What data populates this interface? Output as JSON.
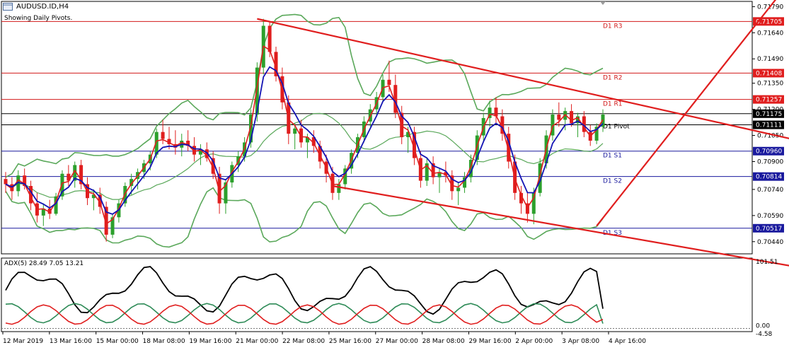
{
  "header": {
    "symbol": "AUDUSD.ID,H4",
    "note": "Showing Daily Pivots.",
    "icons": [
      "window-icon",
      "chart-icon"
    ]
  },
  "adx_header": "ADX(5) 28.49 7.05 13.21",
  "colors": {
    "bull": "#2ca02c",
    "bear": "#e01e1e",
    "bands": "#5aa85a",
    "ma_red": "#e01e1e",
    "ma_blue": "#1414b4",
    "trend": "#e01e1e",
    "resistance": "#d21919",
    "support": "#1a1a9e",
    "label_red_bg": "#e01e1e",
    "label_blue_bg": "#1a1a9e",
    "price_bg": "#000000",
    "adx_main": "#000000",
    "adx_plus": "#2e8b57",
    "adx_minus": "#e01e1e"
  },
  "pivots": [
    {
      "name": "D1 R3",
      "value": 0.71705,
      "label": "0.71705",
      "kind": "resistance"
    },
    {
      "name": "D1 R2",
      "value": 0.71408,
      "label": "0.71408",
      "kind": "resistance"
    },
    {
      "name": "D1 R1",
      "value": 0.71257,
      "label": "0.71257",
      "kind": "resistance"
    },
    {
      "name": "D1 Pivot",
      "value": 0.71111,
      "label": "0.71111",
      "kind": "pivot"
    },
    {
      "name": "D1 S1",
      "value": 0.7096,
      "label": "0.70960",
      "kind": "support"
    },
    {
      "name": "D1 S2",
      "value": 0.70814,
      "label": "0.70814",
      "kind": "support"
    },
    {
      "name": "D1 S3",
      "value": 0.70517,
      "label": "0.70517",
      "kind": "support"
    }
  ],
  "current_price": {
    "value": 0.71175,
    "label": "0.71175"
  },
  "price_ticks": [
    "0.71790",
    "0.71640",
    "0.71490",
    "0.71350",
    "0.71200",
    "0.71050",
    "0.70900",
    "0.70740",
    "0.70590",
    "0.70440"
  ],
  "adx_ticks": [
    "101.51",
    "0.00",
    "-4.58"
  ],
  "time_labels": [
    "12 Mar 2019",
    "13 Mar 16:00",
    "15 Mar 00:00",
    "18 Mar 08:00",
    "19 Mar 16:00",
    "21 Mar 00:00",
    "22 Mar 08:00",
    "25 Mar 16:00",
    "27 Mar 00:00",
    "28 Mar 08:00",
    "29 Mar 16:00",
    "2 Apr 00:00",
    "3 Apr 08:00",
    "4 Apr 16:00"
  ],
  "chart_data": {
    "type": "candlestick",
    "title": "AUDUSD.ID,H4",
    "ylim": [
      0.7037,
      0.7182
    ],
    "candles": [
      [
        0.708,
        0.7084,
        0.7072,
        0.7077
      ],
      [
        0.7077,
        0.7081,
        0.7068,
        0.7073
      ],
      [
        0.7073,
        0.7085,
        0.707,
        0.7082
      ],
      [
        0.7082,
        0.7086,
        0.7074,
        0.7076
      ],
      [
        0.7076,
        0.7079,
        0.7062,
        0.7066
      ],
      [
        0.7066,
        0.7072,
        0.7055,
        0.7059
      ],
      [
        0.7059,
        0.7066,
        0.7053,
        0.7063
      ],
      [
        0.7063,
        0.7068,
        0.7057,
        0.706
      ],
      [
        0.706,
        0.7072,
        0.7059,
        0.707
      ],
      [
        0.707,
        0.7085,
        0.7068,
        0.7083
      ],
      [
        0.7083,
        0.7088,
        0.7076,
        0.7079
      ],
      [
        0.7079,
        0.709,
        0.7075,
        0.7088
      ],
      [
        0.7088,
        0.7091,
        0.7074,
        0.7077
      ],
      [
        0.7077,
        0.7081,
        0.7065,
        0.7069
      ],
      [
        0.7069,
        0.7074,
        0.7062,
        0.7071
      ],
      [
        0.7071,
        0.7075,
        0.706,
        0.7064
      ],
      [
        0.7064,
        0.7067,
        0.7044,
        0.7048
      ],
      [
        0.7048,
        0.706,
        0.7046,
        0.7058
      ],
      [
        0.7058,
        0.7068,
        0.7055,
        0.7066
      ],
      [
        0.7066,
        0.7078,
        0.7064,
        0.7076
      ],
      [
        0.7076,
        0.7083,
        0.7071,
        0.708
      ],
      [
        0.708,
        0.7086,
        0.7074,
        0.7084
      ],
      [
        0.7084,
        0.7091,
        0.708,
        0.7089
      ],
      [
        0.7089,
        0.7096,
        0.7085,
        0.7094
      ],
      [
        0.7094,
        0.7109,
        0.7092,
        0.7107
      ],
      [
        0.7107,
        0.7114,
        0.71,
        0.7103
      ],
      [
        0.7103,
        0.711,
        0.7097,
        0.71
      ],
      [
        0.71,
        0.7108,
        0.7094,
        0.7098
      ],
      [
        0.7098,
        0.7106,
        0.7093,
        0.7102
      ],
      [
        0.7102,
        0.7108,
        0.7096,
        0.7099
      ],
      [
        0.7099,
        0.7104,
        0.709,
        0.7094
      ],
      [
        0.7094,
        0.71,
        0.7088,
        0.7097
      ],
      [
        0.7097,
        0.7101,
        0.709,
        0.7092
      ],
      [
        0.7092,
        0.7096,
        0.708,
        0.7083
      ],
      [
        0.7083,
        0.7087,
        0.706,
        0.7066
      ],
      [
        0.7066,
        0.708,
        0.706,
        0.7078
      ],
      [
        0.7078,
        0.709,
        0.7075,
        0.7088
      ],
      [
        0.7088,
        0.7096,
        0.7084,
        0.7093
      ],
      [
        0.7093,
        0.7104,
        0.709,
        0.7101
      ],
      [
        0.7101,
        0.712,
        0.7098,
        0.7117
      ],
      [
        0.7117,
        0.7147,
        0.7113,
        0.7144
      ],
      [
        0.7144,
        0.7172,
        0.714,
        0.7168
      ],
      [
        0.7168,
        0.717,
        0.715,
        0.7153
      ],
      [
        0.7153,
        0.7156,
        0.7136,
        0.7139
      ],
      [
        0.7139,
        0.7144,
        0.712,
        0.7124
      ],
      [
        0.7124,
        0.7128,
        0.71,
        0.7106
      ],
      [
        0.7106,
        0.7112,
        0.7097,
        0.7109
      ],
      [
        0.7109,
        0.7114,
        0.7098,
        0.7101
      ],
      [
        0.7101,
        0.7106,
        0.7092,
        0.7104
      ],
      [
        0.7104,
        0.7108,
        0.7095,
        0.7099
      ],
      [
        0.7099,
        0.7102,
        0.7086,
        0.709
      ],
      [
        0.709,
        0.7094,
        0.7078,
        0.7083
      ],
      [
        0.7083,
        0.7087,
        0.7068,
        0.7072
      ],
      [
        0.7072,
        0.708,
        0.7068,
        0.7077
      ],
      [
        0.7077,
        0.7088,
        0.7074,
        0.7086
      ],
      [
        0.7086,
        0.7097,
        0.7083,
        0.7095
      ],
      [
        0.7095,
        0.7106,
        0.7092,
        0.7104
      ],
      [
        0.7104,
        0.7116,
        0.7101,
        0.7113
      ],
      [
        0.7113,
        0.7123,
        0.711,
        0.712
      ],
      [
        0.712,
        0.713,
        0.7117,
        0.7127
      ],
      [
        0.7127,
        0.714,
        0.7124,
        0.7137
      ],
      [
        0.7137,
        0.7148,
        0.713,
        0.7134
      ],
      [
        0.7134,
        0.714,
        0.7115,
        0.7118
      ],
      [
        0.7118,
        0.7122,
        0.71,
        0.7104
      ],
      [
        0.7104,
        0.711,
        0.7095,
        0.7107
      ],
      [
        0.7107,
        0.711,
        0.7088,
        0.7092
      ],
      [
        0.7092,
        0.7096,
        0.7075,
        0.7079
      ],
      [
        0.7079,
        0.7092,
        0.7076,
        0.7089
      ],
      [
        0.7089,
        0.7093,
        0.7077,
        0.7081
      ],
      [
        0.7081,
        0.7086,
        0.7072,
        0.7084
      ],
      [
        0.7084,
        0.709,
        0.7078,
        0.7082
      ],
      [
        0.7082,
        0.7085,
        0.7068,
        0.7073
      ],
      [
        0.7073,
        0.7078,
        0.7065,
        0.7075
      ],
      [
        0.7075,
        0.7084,
        0.7072,
        0.7081
      ],
      [
        0.7081,
        0.7094,
        0.7078,
        0.7091
      ],
      [
        0.7091,
        0.7108,
        0.7088,
        0.7105
      ],
      [
        0.7105,
        0.7118,
        0.7102,
        0.7115
      ],
      [
        0.7115,
        0.7125,
        0.711,
        0.7121
      ],
      [
        0.7121,
        0.7127,
        0.7112,
        0.7116
      ],
      [
        0.7116,
        0.712,
        0.7102,
        0.7106
      ],
      [
        0.7106,
        0.711,
        0.7086,
        0.709
      ],
      [
        0.709,
        0.7094,
        0.7068,
        0.7072
      ],
      [
        0.7072,
        0.7076,
        0.706,
        0.7066
      ],
      [
        0.7066,
        0.7072,
        0.7055,
        0.706
      ],
      [
        0.706,
        0.7075,
        0.7054,
        0.7072
      ],
      [
        0.7072,
        0.7092,
        0.707,
        0.7089
      ],
      [
        0.7089,
        0.7108,
        0.7086,
        0.7105
      ],
      [
        0.7105,
        0.712,
        0.7102,
        0.7117
      ],
      [
        0.7117,
        0.7124,
        0.711,
        0.7114
      ],
      [
        0.7114,
        0.7121,
        0.7108,
        0.7119
      ],
      [
        0.7119,
        0.7123,
        0.711,
        0.7112
      ],
      [
        0.7112,
        0.7118,
        0.7104,
        0.7116
      ],
      [
        0.7116,
        0.7119,
        0.7104,
        0.7107
      ],
      [
        0.7107,
        0.7111,
        0.7099,
        0.7102
      ],
      [
        0.7102,
        0.7112,
        0.71,
        0.711
      ],
      [
        0.711,
        0.712,
        0.7107,
        0.7117
      ]
    ],
    "trendlines": "descending upper resistance, descending lower support, ascending support breakout line",
    "adx": {
      "values": [
        28.49,
        7.05,
        13.21
      ],
      "ylim": [
        -4.58,
        101.51
      ]
    }
  }
}
